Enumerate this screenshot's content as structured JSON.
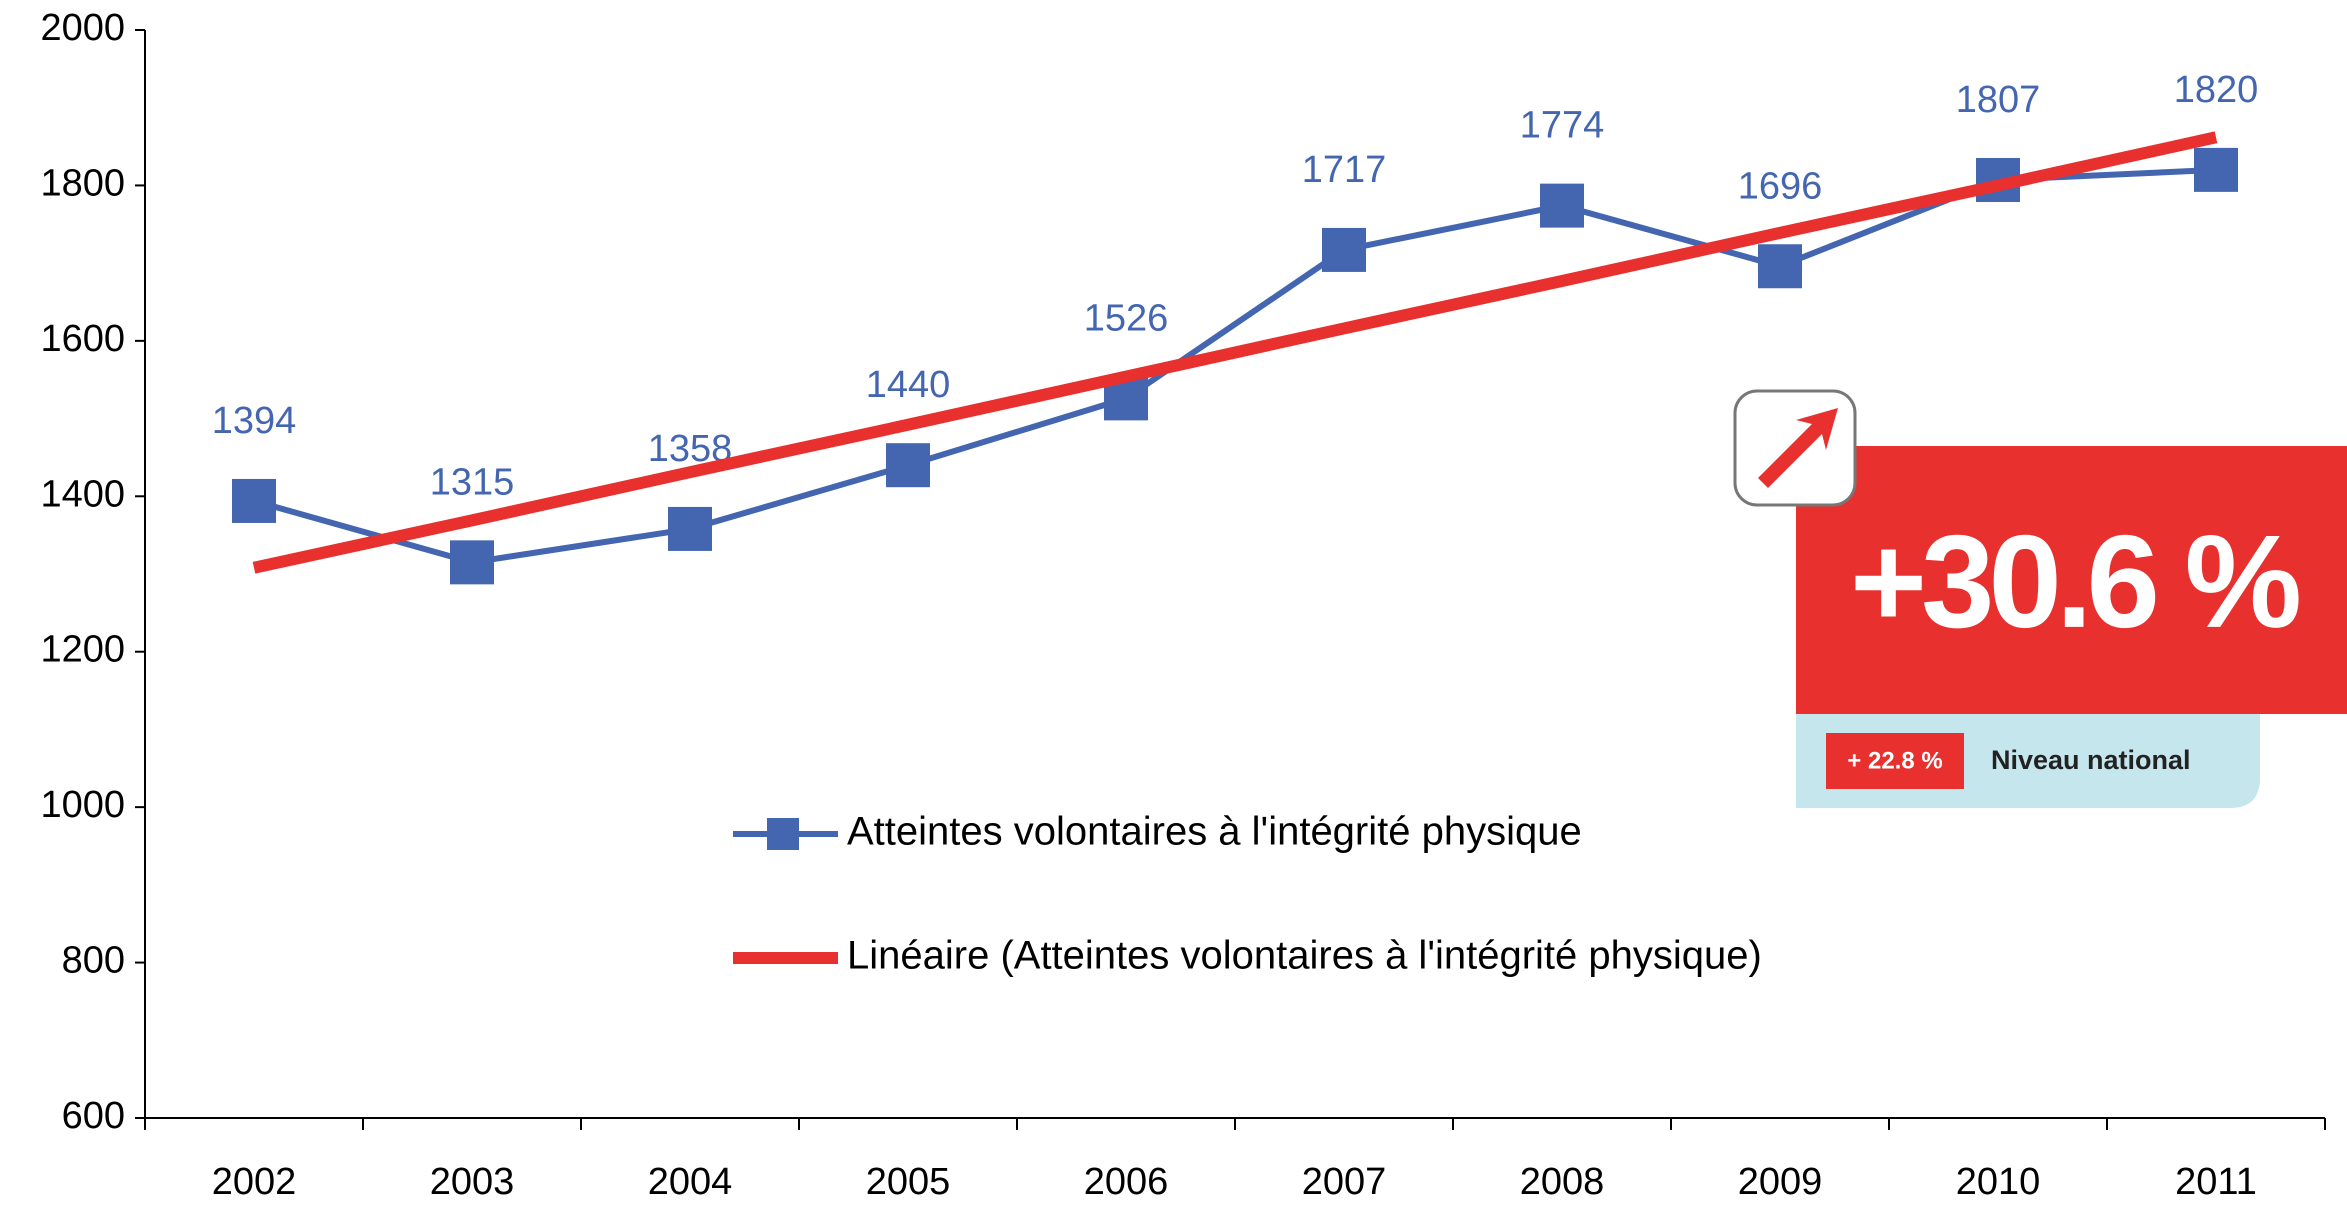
{
  "chart_data": {
    "type": "line",
    "categories": [
      "2002",
      "2003",
      "2004",
      "2005",
      "2006",
      "2007",
      "2008",
      "2009",
      "2010",
      "2011"
    ],
    "series": [
      {
        "name": "Atteintes volontaires à l'intégrité physique",
        "color": "#4466b0",
        "values": [
          1394,
          1315,
          1358,
          1440,
          1526,
          1717,
          1774,
          1696,
          1807,
          1820
        ]
      },
      {
        "name": "Linéaire (Atteintes volontaires à l'intégrité physique)",
        "color": "#e8302e",
        "values": [
          1308,
          1369,
          1431,
          1492,
          1554,
          1616,
          1677,
          1739,
          1800,
          1862
        ]
      }
    ],
    "ylim": [
      600,
      2000
    ],
    "yticks": [
      600,
      800,
      1000,
      1200,
      1400,
      1600,
      1800,
      2000
    ],
    "annotations": {
      "change": "+30.6 %",
      "national_change": "+ 22.8 %",
      "national_label": "Niveau national"
    }
  }
}
